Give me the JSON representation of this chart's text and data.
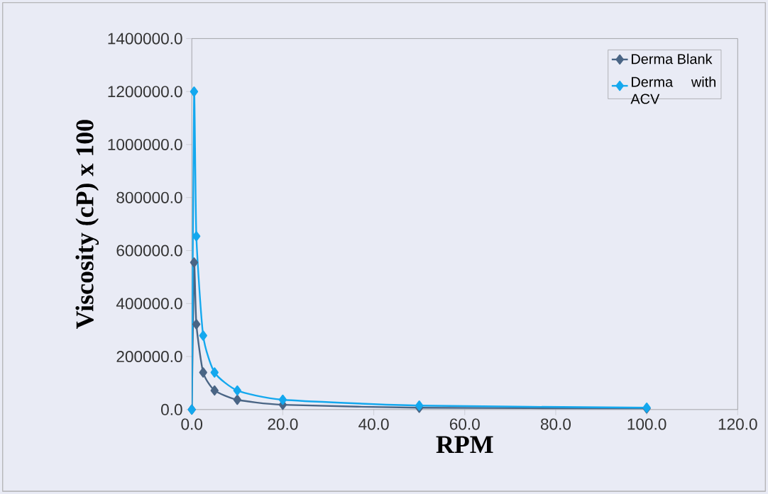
{
  "chart_data": {
    "type": "line",
    "xlabel": "RPM",
    "ylabel": "Viscosity (cP) x 100",
    "x": [
      0,
      0.5,
      1,
      2.5,
      5,
      10,
      20,
      50,
      100
    ],
    "series": [
      {
        "name": "Derma Blank",
        "color": "#4a6585",
        "values": [
          0,
          555000,
          322000,
          140000,
          72000,
          37000,
          18000,
          7000,
          4000
        ]
      },
      {
        "name": "Derma with ACV",
        "color": "#14a8ee",
        "values": [
          0,
          1200000,
          654000,
          279000,
          140000,
          72000,
          37000,
          15000,
          7000
        ]
      }
    ],
    "xlim": [
      0,
      120
    ],
    "ylim": [
      0,
      1400000
    ],
    "xticks": [
      {
        "value": 0,
        "label": "0.0"
      },
      {
        "value": 20,
        "label": "20.0"
      },
      {
        "value": 40,
        "label": "40.0"
      },
      {
        "value": 60,
        "label": "60.0"
      },
      {
        "value": 80,
        "label": "80.0"
      },
      {
        "value": 100,
        "label": "100.0"
      },
      {
        "value": 120,
        "label": "120.0"
      }
    ],
    "yticks": [
      {
        "value": 0,
        "label": "0.0"
      },
      {
        "value": 200000,
        "label": "200000.0"
      },
      {
        "value": 400000,
        "label": "400000.0"
      },
      {
        "value": 600000,
        "label": "600000.0"
      },
      {
        "value": 800000,
        "label": "800000.0"
      },
      {
        "value": 1000000,
        "label": "1000000.0"
      },
      {
        "value": 1200000,
        "label": "1200000.0"
      },
      {
        "value": 1400000,
        "label": "1400000.0"
      }
    ],
    "legend": "top right",
    "marker": "diamond",
    "line_style": "solid",
    "grid": false
  }
}
